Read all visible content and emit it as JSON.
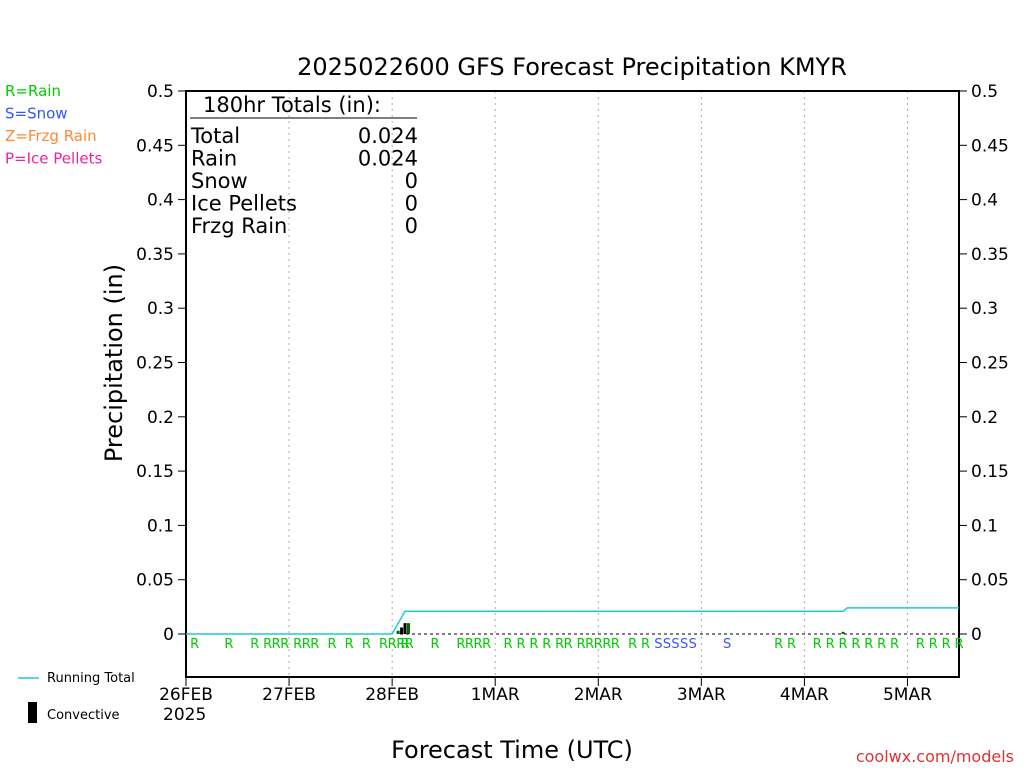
{
  "colors": {
    "rain": "#00cc00",
    "snow": "#3355ff",
    "frzg": "#ff8833",
    "ice": "#ee2299",
    "running": "#22cccc",
    "credit": "#dd3333",
    "grid": "#aaaaaa"
  },
  "chart_data": {
    "type": "bar",
    "title": "2025022600 GFS Forecast Precipitation KMYR",
    "ylabel": "Precipitation (in)",
    "xlabel": "Forecast Time (UTC)",
    "ylim": [
      0,
      0.5
    ],
    "xlim_hours": [
      0,
      180
    ],
    "yticks": [
      "0.5",
      "0.45",
      "0.4",
      "0.35",
      "0.3",
      "0.25",
      "0.2",
      "0.15",
      "0.1",
      "0.05",
      "0"
    ],
    "xticks": [
      {
        "label": "26FEB",
        "hour": 0
      },
      {
        "label": "27FEB",
        "hour": 24
      },
      {
        "label": "28FEB",
        "hour": 48
      },
      {
        "label": "1MAR",
        "hour": 72
      },
      {
        "label": "2MAR",
        "hour": 96
      },
      {
        "label": "3MAR",
        "hour": 120
      },
      {
        "label": "4MAR",
        "hour": 144
      },
      {
        "label": "5MAR",
        "hour": 168
      }
    ],
    "year_label": "2025",
    "grid": "vertical dotted",
    "legend_types": [
      {
        "label": "R=Rain",
        "key": "rain"
      },
      {
        "label": "S=Snow",
        "key": "snow"
      },
      {
        "label": "Z=Frzg Rain",
        "key": "frzg"
      },
      {
        "label": "P=Ice Pellets",
        "key": "ice"
      }
    ],
    "legend_lines": [
      {
        "label": "Running Total",
        "kind": "line"
      },
      {
        "label": "Convective",
        "kind": "bar"
      }
    ],
    "totals": {
      "heading": "180hr Totals (in):",
      "rows": [
        {
          "label": "Total",
          "value": "0.024"
        },
        {
          "label": "Rain",
          "value": "0.024"
        },
        {
          "label": "Snow",
          "value": "0"
        },
        {
          "label": "Ice Pellets",
          "value": "0"
        },
        {
          "label": "Frzg Rain",
          "value": "0"
        }
      ]
    },
    "bars": [
      {
        "hour": 50.2,
        "value": 0.006,
        "kind": "convective"
      },
      {
        "hour": 51.0,
        "value": 0.01,
        "kind": "convective"
      },
      {
        "hour": 49.4,
        "value": 0.003,
        "kind": "precip"
      },
      {
        "hour": 51.8,
        "value": 0.01,
        "kind": "precip"
      },
      {
        "hour": 153.0,
        "value": 0.002,
        "kind": "precip"
      }
    ],
    "running_total": [
      {
        "hour": 0,
        "value": 0
      },
      {
        "hour": 48,
        "value": 0
      },
      {
        "hour": 51,
        "value": 0.021
      },
      {
        "hour": 153,
        "value": 0.021
      },
      {
        "hour": 154,
        "value": 0.024
      },
      {
        "hour": 180,
        "value": 0.024
      }
    ],
    "precip_types": [
      {
        "hour": 2,
        "t": "R"
      },
      {
        "hour": 10,
        "t": "R"
      },
      {
        "hour": 16,
        "t": "R"
      },
      {
        "hour": 19,
        "t": "R"
      },
      {
        "hour": 21,
        "t": "R"
      },
      {
        "hour": 23,
        "t": "R"
      },
      {
        "hour": 26,
        "t": "R"
      },
      {
        "hour": 28,
        "t": "R"
      },
      {
        "hour": 30,
        "t": "R"
      },
      {
        "hour": 34,
        "t": "R"
      },
      {
        "hour": 38,
        "t": "R"
      },
      {
        "hour": 42,
        "t": "R"
      },
      {
        "hour": 46,
        "t": "R"
      },
      {
        "hour": 48,
        "t": "R"
      },
      {
        "hour": 50,
        "t": "R"
      },
      {
        "hour": 51,
        "t": "R"
      },
      {
        "hour": 52,
        "t": "R"
      },
      {
        "hour": 58,
        "t": "R"
      },
      {
        "hour": 64,
        "t": "R"
      },
      {
        "hour": 66,
        "t": "R"
      },
      {
        "hour": 68,
        "t": "R"
      },
      {
        "hour": 70,
        "t": "R"
      },
      {
        "hour": 75,
        "t": "R"
      },
      {
        "hour": 78,
        "t": "R"
      },
      {
        "hour": 81,
        "t": "R"
      },
      {
        "hour": 84,
        "t": "R"
      },
      {
        "hour": 87,
        "t": "R"
      },
      {
        "hour": 89,
        "t": "R"
      },
      {
        "hour": 92,
        "t": "R"
      },
      {
        "hour": 94,
        "t": "R"
      },
      {
        "hour": 96,
        "t": "R"
      },
      {
        "hour": 98,
        "t": "R"
      },
      {
        "hour": 100,
        "t": "R"
      },
      {
        "hour": 104,
        "t": "R"
      },
      {
        "hour": 107,
        "t": "R"
      },
      {
        "hour": 110,
        "t": "S"
      },
      {
        "hour": 112,
        "t": "S"
      },
      {
        "hour": 114,
        "t": "S"
      },
      {
        "hour": 116,
        "t": "S"
      },
      {
        "hour": 118,
        "t": "S"
      },
      {
        "hour": 126,
        "t": "S"
      },
      {
        "hour": 138,
        "t": "R"
      },
      {
        "hour": 141,
        "t": "R"
      },
      {
        "hour": 147,
        "t": "R"
      },
      {
        "hour": 150,
        "t": "R"
      },
      {
        "hour": 153,
        "t": "R"
      },
      {
        "hour": 156,
        "t": "R"
      },
      {
        "hour": 159,
        "t": "R"
      },
      {
        "hour": 162,
        "t": "R"
      },
      {
        "hour": 165,
        "t": "R"
      },
      {
        "hour": 171,
        "t": "R"
      },
      {
        "hour": 174,
        "t": "R"
      },
      {
        "hour": 177,
        "t": "R"
      },
      {
        "hour": 180,
        "t": "R"
      }
    ]
  },
  "footer": {
    "credit": "coolwx.com/models"
  }
}
